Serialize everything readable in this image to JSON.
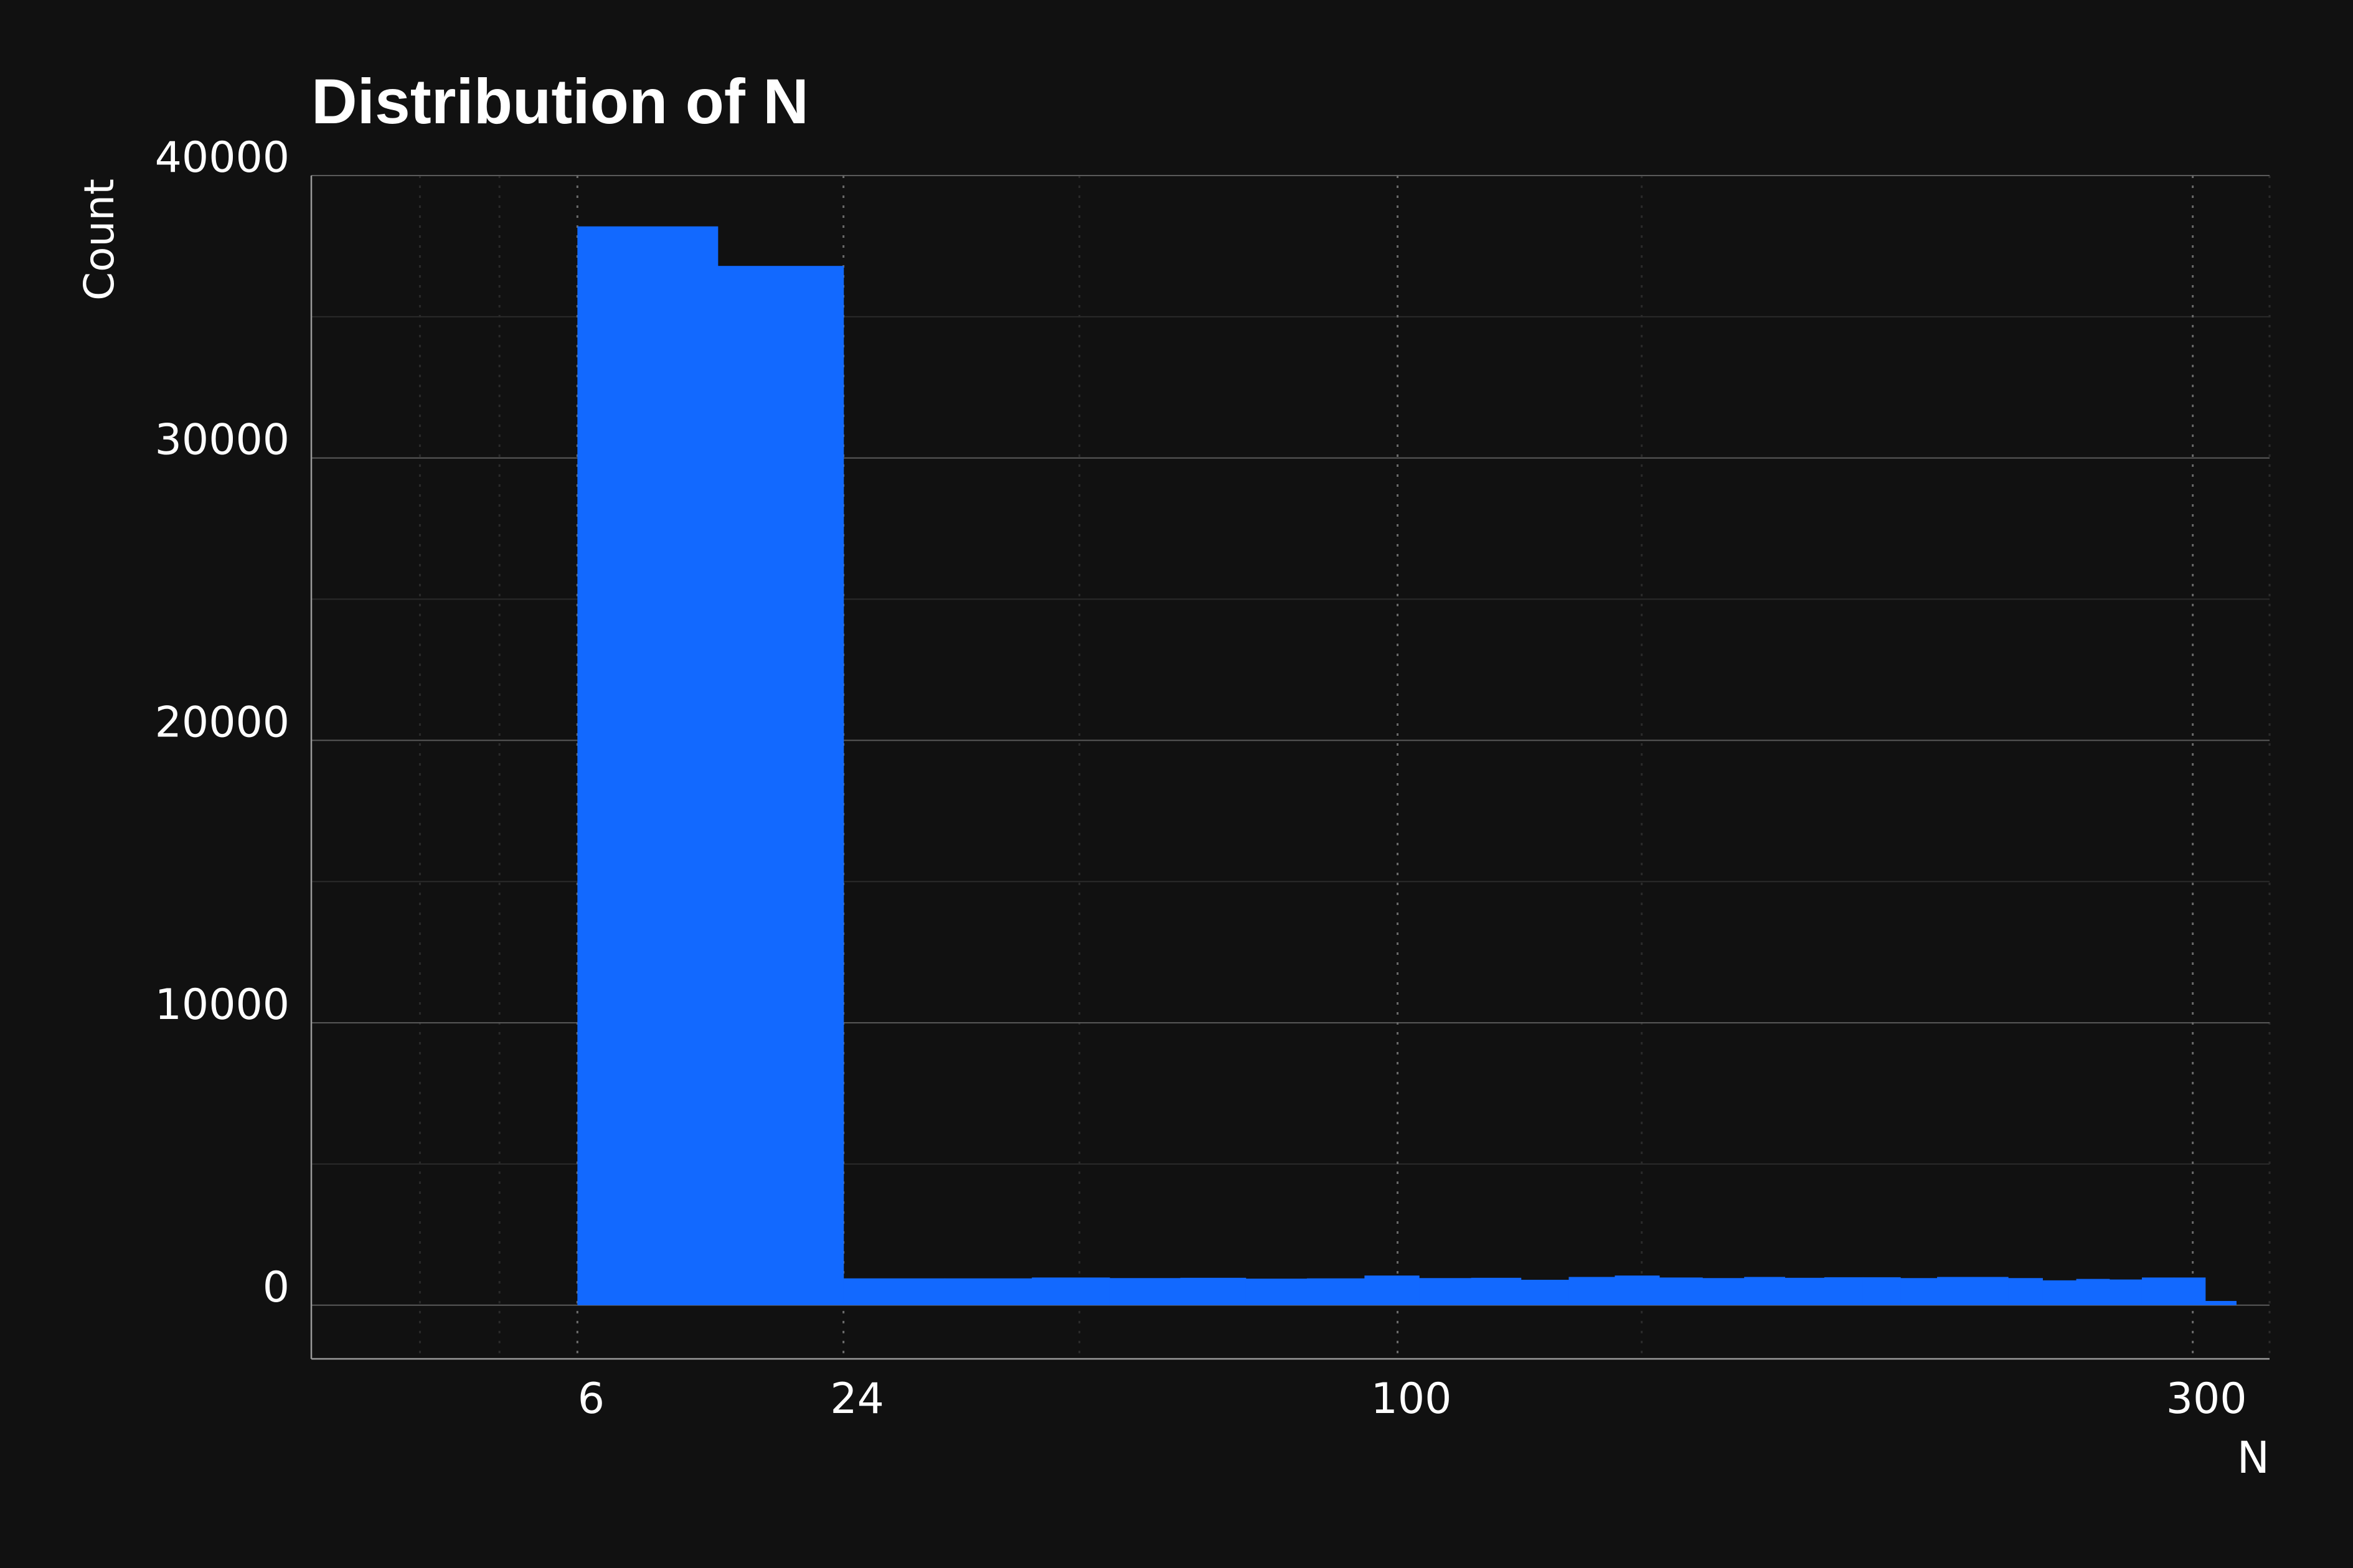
{
  "colors": {
    "background": "#111111",
    "bar": "#1269ff",
    "text": "#ffffff",
    "grid_major": "#5a5a5a",
    "grid_minor": "#2a2a2a",
    "vgrid": "#6a6a6a",
    "axis": "#9a9a9a"
  },
  "chart_data": {
    "type": "bar",
    "title": "Distribution of N",
    "xlabel": "N",
    "ylabel": "Count",
    "grid": true,
    "legend": "none",
    "x_scale": "sqrt",
    "xlim": [
      0,
      325
    ],
    "ylim": [
      -1900,
      40000
    ],
    "y_ticks": [
      0,
      10000,
      20000,
      30000,
      40000
    ],
    "y_tick_labels": [
      "0",
      "10000",
      "20000",
      "30000",
      "40000"
    ],
    "y_minor_ticks": [
      5000,
      15000,
      25000,
      35000
    ],
    "x_ticks": [
      6,
      24,
      100,
      300
    ],
    "x_tick_labels": [
      "6",
      "24",
      "100",
      "300"
    ],
    "x_minor_grid": [
      1,
      3,
      50,
      150,
      325
    ],
    "bin_edges": [
      6,
      14,
      24,
      34,
      44,
      54,
      64,
      74,
      84,
      94,
      104,
      114,
      124,
      134,
      144,
      154,
      164,
      174,
      184,
      194,
      204,
      214,
      224,
      234,
      244,
      254,
      264,
      274,
      284,
      294,
      304
    ],
    "values": [
      38200,
      36800,
      950,
      950,
      980,
      960,
      970,
      940,
      950,
      1050,
      960,
      970,
      900,
      1000,
      1050,
      980,
      960,
      1000,
      970,
      990,
      990,
      960,
      1000,
      1000,
      960,
      880,
      930,
      910,
      980,
      980,
      150
    ]
  }
}
